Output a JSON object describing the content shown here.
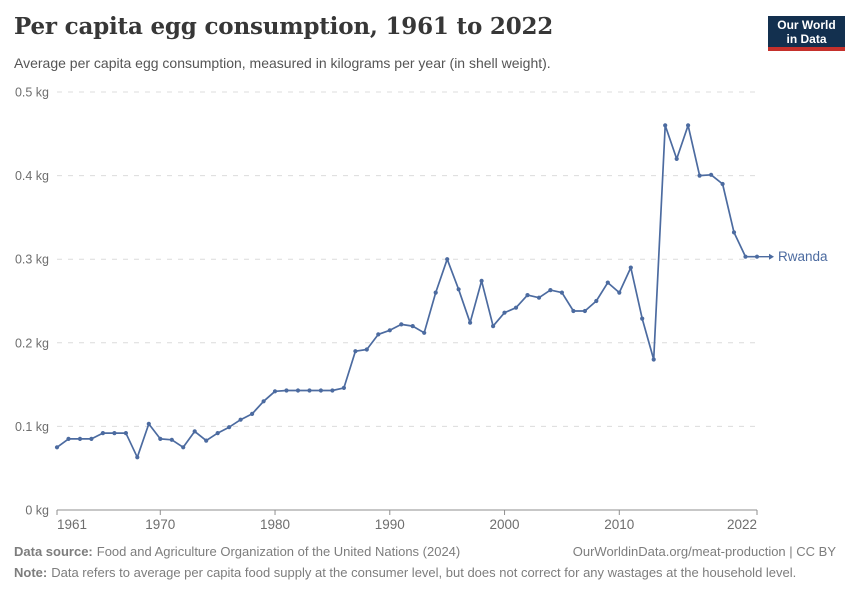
{
  "header": {
    "title": "Per capita egg consumption, 1961 to 2022",
    "subtitle": "Average per capita egg consumption, measured in kilograms per year (in shell weight).",
    "logo": {
      "line1": "Our World",
      "line2": "in Data"
    }
  },
  "chart_data": {
    "type": "line",
    "title": "Per capita egg consumption, 1961 to 2022",
    "ylabel": "kilograms per year (in shell weight)",
    "xlabel": "",
    "xlim": [
      1961,
      2022
    ],
    "ylim": [
      0,
      0.5
    ],
    "grid": "horizontal dashed",
    "legend_position": "line-end label",
    "entity_label": "Rwanda",
    "line_color": "#4c6ba0",
    "x_tick_years": [
      1961,
      1970,
      1980,
      1990,
      2000,
      2010,
      2022
    ],
    "x_tick_labels": [
      "1961",
      "1970",
      "1980",
      "1990",
      "2000",
      "2010",
      "2022"
    ],
    "y_ticks": [
      {
        "value": 0.5,
        "label": "0.5 kg"
      },
      {
        "value": 0.4,
        "label": "0.4 kg"
      },
      {
        "value": 0.3,
        "label": "0.3 kg"
      },
      {
        "value": 0.2,
        "label": "0.2 kg"
      },
      {
        "value": 0.1,
        "label": "0.1 kg"
      },
      {
        "value": 0,
        "label": "0 kg"
      }
    ],
    "series": [
      {
        "name": "Rwanda",
        "years": [
          1961,
          1962,
          1963,
          1964,
          1965,
          1966,
          1967,
          1968,
          1969,
          1970,
          1971,
          1972,
          1973,
          1974,
          1975,
          1976,
          1977,
          1978,
          1979,
          1980,
          1981,
          1982,
          1983,
          1984,
          1985,
          1986,
          1987,
          1988,
          1989,
          1990,
          1991,
          1992,
          1993,
          1994,
          1995,
          1996,
          1997,
          1998,
          1999,
          2000,
          2001,
          2002,
          2003,
          2004,
          2005,
          2006,
          2007,
          2008,
          2009,
          2010,
          2011,
          2012,
          2013,
          2014,
          2015,
          2016,
          2017,
          2018,
          2019,
          2020,
          2021,
          2022
        ],
        "values": [
          0.075,
          0.085,
          0.085,
          0.085,
          0.092,
          0.092,
          0.092,
          0.063,
          0.103,
          0.085,
          0.084,
          0.075,
          0.094,
          0.083,
          0.092,
          0.099,
          0.108,
          0.115,
          0.13,
          0.142,
          0.143,
          0.143,
          0.143,
          0.143,
          0.143,
          0.146,
          0.19,
          0.192,
          0.21,
          0.215,
          0.222,
          0.22,
          0.212,
          0.26,
          0.3,
          0.264,
          0.224,
          0.274,
          0.22,
          0.236,
          0.242,
          0.257,
          0.254,
          0.263,
          0.26,
          0.238,
          0.238,
          0.25,
          0.272,
          0.26,
          0.29,
          0.229,
          0.18,
          0.46,
          0.42,
          0.46,
          0.4,
          0.401,
          0.39,
          0.332,
          0.303,
          0.303
        ]
      }
    ]
  },
  "footer": {
    "data_source_label": "Data source:",
    "data_source": "Food and Agriculture Organization of the United Nations (2024)",
    "link": "OurWorldinData.org/meat-production | CC BY",
    "note_label": "Note:",
    "note": "Data refers to average per capita food supply at the consumer level, but does not correct for any wastages at the household level."
  },
  "colors": {
    "line": "#4c6ba0",
    "logo_navy": "#13304f",
    "logo_red": "#c5302b",
    "gridline": "#dcdcdc",
    "axis_line": "#8f8f8f",
    "axis_text": "#6e6e6e"
  }
}
